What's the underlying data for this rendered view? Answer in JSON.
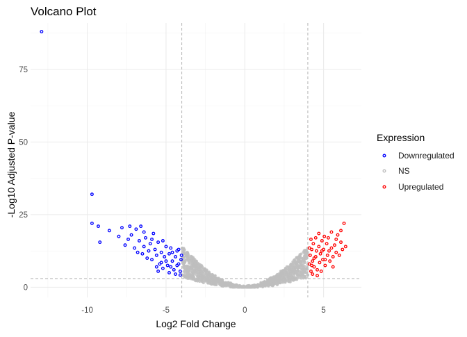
{
  "chart_data": {
    "type": "scatter",
    "title": "Volcano Plot",
    "xlabel": "Log2 Fold Change",
    "ylabel": "-Log10 Adjusted P-value",
    "xlim": [
      -13.6,
      7.4
    ],
    "ylim": [
      -3.5,
      91
    ],
    "x_ticks": [
      -10,
      -5,
      0,
      5
    ],
    "x_tick_labels": [
      "-10",
      "-5",
      "0",
      "5"
    ],
    "y_ticks": [
      0,
      25,
      50,
      75
    ],
    "y_tick_labels": [
      "0",
      "25",
      "50",
      "75"
    ],
    "grid": true,
    "vlines": [
      -4,
      4
    ],
    "hline": 3,
    "legend": {
      "title": "Expression",
      "position": "right",
      "entries": [
        "Downregulated",
        "NS",
        "Upregulated"
      ]
    },
    "colors": {
      "Downregulated": "#0000ff",
      "NS": "#bebebe",
      "Upregulated": "#ff0000"
    },
    "series": [
      {
        "name": "Downregulated",
        "points": [
          [
            -12.9,
            88
          ],
          [
            -9.7,
            32
          ],
          [
            -9.7,
            22
          ],
          [
            -9.3,
            21
          ],
          [
            -9.2,
            15.5
          ],
          [
            -8.6,
            19.5
          ],
          [
            -8.0,
            17.5
          ],
          [
            -7.8,
            20.5
          ],
          [
            -7.6,
            14.5
          ],
          [
            -7.3,
            21
          ],
          [
            -7.2,
            18
          ],
          [
            -7.0,
            13.5
          ],
          [
            -6.9,
            20
          ],
          [
            -6.7,
            16
          ],
          [
            -6.6,
            21
          ],
          [
            -6.5,
            11.5
          ],
          [
            -6.4,
            14
          ],
          [
            -6.3,
            17
          ],
          [
            -6.1,
            12.5
          ],
          [
            -6.0,
            15
          ],
          [
            -5.9,
            9.5
          ],
          [
            -5.8,
            18.5
          ],
          [
            -5.7,
            13
          ],
          [
            -5.6,
            11
          ],
          [
            -5.5,
            15.5
          ],
          [
            -5.4,
            8
          ],
          [
            -5.3,
            12
          ],
          [
            -5.2,
            16
          ],
          [
            -5.1,
            10.5
          ],
          [
            -5.0,
            14
          ],
          [
            -4.9,
            7.5
          ],
          [
            -4.8,
            11.5
          ],
          [
            -4.7,
            13.5
          ],
          [
            -4.6,
            9
          ],
          [
            -4.5,
            6
          ],
          [
            -4.4,
            10.5
          ],
          [
            -4.3,
            12.5
          ],
          [
            -4.2,
            8
          ],
          [
            -4.1,
            5.5
          ],
          [
            -4.05,
            9.5
          ],
          [
            -4.02,
            11
          ],
          [
            -5.6,
            7
          ],
          [
            -5.2,
            6.5
          ],
          [
            -4.8,
            5
          ],
          [
            -4.4,
            4.5
          ],
          [
            -4.7,
            7
          ],
          [
            -5.0,
            9
          ],
          [
            -6.2,
            10
          ],
          [
            -5.5,
            5.5
          ],
          [
            -4.3,
            7.5
          ],
          [
            -4.1,
            4.2
          ],
          [
            -6.8,
            12
          ],
          [
            -5.9,
            16.5
          ],
          [
            -4.6,
            12
          ],
          [
            -5.3,
            8.5
          ],
          [
            -4.2,
            13
          ],
          [
            -6.4,
            19
          ],
          [
            -7.4,
            16.5
          ]
        ]
      },
      {
        "name": "Upregulated",
        "points": [
          [
            4.1,
            8
          ],
          [
            4.15,
            11
          ],
          [
            4.2,
            5.5
          ],
          [
            4.25,
            13
          ],
          [
            4.3,
            9
          ],
          [
            4.35,
            15
          ],
          [
            4.4,
            7
          ],
          [
            4.5,
            10.5
          ],
          [
            4.55,
            12.5
          ],
          [
            4.6,
            6
          ],
          [
            4.7,
            14
          ],
          [
            4.75,
            8.5
          ],
          [
            4.8,
            11.5
          ],
          [
            4.9,
            16
          ],
          [
            4.95,
            9.5
          ],
          [
            5.0,
            13
          ],
          [
            5.1,
            7.5
          ],
          [
            5.2,
            15
          ],
          [
            5.25,
            11
          ],
          [
            5.3,
            17
          ],
          [
            5.4,
            9
          ],
          [
            5.5,
            13.5
          ],
          [
            5.6,
            10.5
          ],
          [
            5.7,
            14.5
          ],
          [
            5.8,
            12
          ],
          [
            5.9,
            18
          ],
          [
            6.0,
            11
          ],
          [
            6.1,
            15.5
          ],
          [
            6.2,
            13
          ],
          [
            6.3,
            22
          ],
          [
            6.1,
            19.5
          ],
          [
            5.5,
            19
          ],
          [
            4.7,
            18.5
          ],
          [
            4.5,
            17
          ],
          [
            4.2,
            16.5
          ],
          [
            4.3,
            4.5
          ],
          [
            4.6,
            4
          ],
          [
            5.1,
            9.5
          ],
          [
            5.6,
            7
          ],
          [
            4.9,
            12.5
          ],
          [
            4.4,
            10
          ],
          [
            5.8,
            16.5
          ],
          [
            6.4,
            14
          ],
          [
            4.1,
            13.5
          ],
          [
            4.85,
            5.5
          ],
          [
            5.35,
            12.5
          ],
          [
            4.25,
            7.5
          ],
          [
            5.05,
            17.5
          ]
        ]
      },
      {
        "name": "NS",
        "generated": true,
        "count": 1200
      }
    ]
  }
}
